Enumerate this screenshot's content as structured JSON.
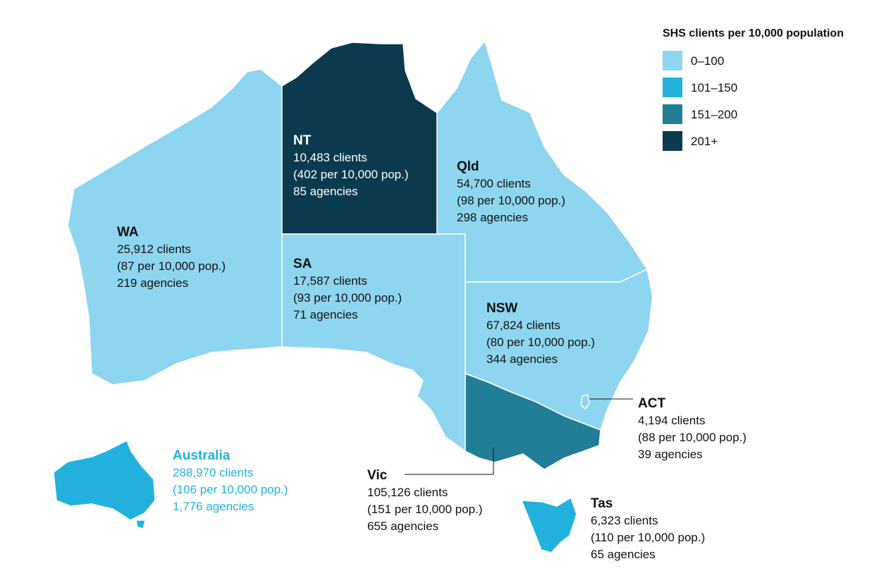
{
  "legend": {
    "title": "SHS clients per 10,000 population",
    "items": [
      {
        "label": "0–100",
        "color": "#8ed5f0"
      },
      {
        "label": "101–150",
        "color": "#22b1dd"
      },
      {
        "label": "151–200",
        "color": "#227d96"
      },
      {
        "label": "201+",
        "color": "#0b3a4e"
      }
    ]
  },
  "regions": [
    {
      "name": "WA",
      "clients": "25,912 clients",
      "rate": "(87 per 10,000 pop.)",
      "agencies": "219 agencies",
      "color": "#8ed5f0"
    },
    {
      "name": "NT",
      "clients": "10,483 clients",
      "rate": "(402 per 10,000 pop.)",
      "agencies": "85 agencies",
      "color": "#0b3a4e"
    },
    {
      "name": "SA",
      "clients": "17,587 clients",
      "rate": "(93 per 10,000 pop.)",
      "agencies": "71 agencies",
      "color": "#8ed5f0"
    },
    {
      "name": "Qld",
      "clients": "54,700 clients",
      "rate": "(98 per 10,000 pop.)",
      "agencies": "298 agencies",
      "color": "#8ed5f0"
    },
    {
      "name": "NSW",
      "clients": "67,824 clients",
      "rate": "(80 per 10,000 pop.)",
      "agencies": "344 agencies",
      "color": "#8ed5f0"
    },
    {
      "name": "Vic",
      "clients": "105,126 clients",
      "rate": "(151 per 10,000 pop.)",
      "agencies": "655 agencies",
      "color": "#227d96"
    },
    {
      "name": "ACT",
      "clients": "4,194 clients",
      "rate": "(88 per 10,000 pop.)",
      "agencies": "39 agencies",
      "color": "#8ed5f0"
    },
    {
      "name": "Tas",
      "clients": "6,323 clients",
      "rate": "(110 per 10,000 pop.)",
      "agencies": "65 agencies",
      "color": "#22b1dd"
    }
  ],
  "national": {
    "name": "Australia",
    "clients": "288,970 clients",
    "rate": "(106 per 10,000 pop.)",
    "agencies": "1,776 agencies",
    "color": "#22b1dd"
  }
}
